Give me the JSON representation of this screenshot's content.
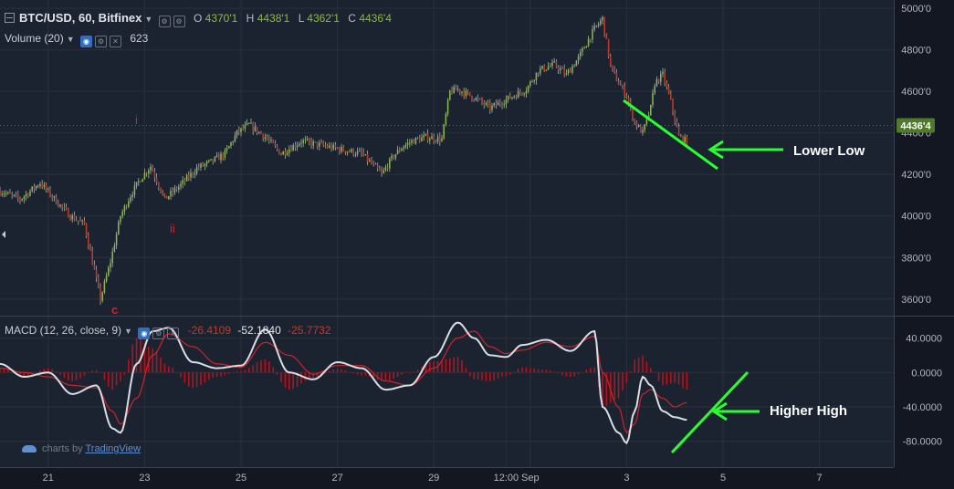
{
  "header": {
    "symbol": "BTC/USD, 60, Bitfinex",
    "ohlc": [
      {
        "label": "O",
        "value": "4370'1"
      },
      {
        "label": "H",
        "value": "4438'1"
      },
      {
        "label": "L",
        "value": "4362'1"
      },
      {
        "label": "C",
        "value": "4436'4"
      }
    ],
    "volume_label": "Volume (20)",
    "volume_value": "623",
    "macd_label": "MACD (12, 26, close, 9)",
    "macd_values": [
      "-26.4109",
      "-52.1840",
      "-25.7732"
    ]
  },
  "branding": {
    "prefix": "charts by",
    "name": "TradingView"
  },
  "colors": {
    "background": "#131722",
    "grid": "#2a2f3a",
    "up": "#8ab94b",
    "down": "#c0392b",
    "wick": "#9fb5a0",
    "macd_line": "#d9dce2",
    "signal_line": "#d0222a",
    "histogram": "#b3131b",
    "annotation": "#29ff2e",
    "wave_label": "#e11f1f",
    "price_tag": "#4f7a2c"
  },
  "icons": [
    "collapse-icon",
    "settings-icon",
    "eye-icon",
    "close-icon",
    "caret-down-icon",
    "tradingview-cloud-icon"
  ],
  "chart_data": [
    {
      "type": "candlestick",
      "ylim": [
        3520,
        5040
      ],
      "yticks": [
        3600,
        3800,
        4000,
        4200,
        4400,
        4600,
        4800,
        5000
      ],
      "ytick_labels": [
        "3600'0",
        "3800'0",
        "4000'0",
        "4200'0",
        "4400'0",
        "4600'0",
        "4800'0",
        "5000'0"
      ],
      "last_price_label": "4436'4",
      "last_price": 4436,
      "xticks": [
        "21",
        "23",
        "25",
        "27",
        "29",
        "12:00",
        "Sep",
        "3",
        "5",
        "7"
      ],
      "xticks_hours": [
        24,
        72,
        120,
        168,
        216,
        252,
        264,
        312,
        360,
        408
      ],
      "x_range_hours": [
        0,
        445
      ],
      "price_path_hours": [
        0,
        10,
        20,
        30,
        35,
        42,
        50,
        55,
        60,
        65,
        70,
        75,
        82,
        90,
        98,
        105,
        112,
        118,
        124,
        132,
        140,
        150,
        160,
        170,
        180,
        190,
        196,
        200,
        205,
        212,
        220,
        224,
        228,
        236,
        244,
        252,
        262,
        268,
        276,
        282,
        288,
        293,
        296,
        300,
        304,
        308,
        312,
        316,
        320,
        324,
        326,
        330,
        334,
        338,
        342
      ],
      "price_path": [
        4120,
        4080,
        4160,
        4050,
        4000,
        3960,
        3600,
        3780,
        4000,
        4100,
        4180,
        4240,
        4080,
        4150,
        4230,
        4260,
        4300,
        4400,
        4440,
        4380,
        4300,
        4360,
        4340,
        4320,
        4300,
        4200,
        4290,
        4330,
        4360,
        4380,
        4370,
        4600,
        4610,
        4570,
        4520,
        4560,
        4610,
        4700,
        4730,
        4680,
        4760,
        4850,
        4900,
        4950,
        4720,
        4640,
        4580,
        4450,
        4400,
        4520,
        4640,
        4680,
        4550,
        4380,
        4360
      ],
      "annotations": [
        {
          "text": "Lower Low",
          "kind": "line-and-arrow"
        },
        {
          "text": "i",
          "kind": "wave-label"
        },
        {
          "text": "ii",
          "kind": "wave-label"
        },
        {
          "text": "c",
          "kind": "wave-label"
        }
      ]
    },
    {
      "type": "line",
      "title": "MACD (12, 26, close, 9)",
      "ylim": [
        -110,
        65
      ],
      "yticks": [
        40,
        0,
        -40,
        -80
      ],
      "ytick_labels": [
        "40.0000",
        "0.0000",
        "-40.0000",
        "-80.0000"
      ],
      "x_hours": [
        0,
        12,
        24,
        36,
        48,
        56,
        60,
        68,
        76,
        84,
        96,
        108,
        120,
        132,
        144,
        156,
        168,
        180,
        192,
        204,
        216,
        228,
        236,
        244,
        252,
        260,
        272,
        284,
        296,
        300,
        308,
        312,
        316,
        320,
        324,
        330,
        336,
        342
      ],
      "series": [
        {
          "name": "MACD",
          "values": [
            10,
            -5,
            0,
            -25,
            -15,
            -65,
            -70,
            10,
            48,
            52,
            12,
            5,
            8,
            50,
            0,
            -8,
            12,
            5,
            -20,
            -15,
            18,
            58,
            40,
            20,
            18,
            32,
            38,
            25,
            48,
            -40,
            -70,
            -82,
            -45,
            -5,
            -15,
            -45,
            -52,
            -55
          ]
        },
        {
          "name": "Signal",
          "values": [
            5,
            0,
            -5,
            -15,
            -18,
            -45,
            -60,
            -30,
            20,
            45,
            30,
            10,
            6,
            35,
            20,
            -2,
            8,
            8,
            -10,
            -15,
            5,
            40,
            48,
            30,
            22,
            26,
            35,
            30,
            42,
            0,
            -40,
            -70,
            -60,
            -25,
            -20,
            -30,
            -40,
            -35
          ]
        },
        {
          "name": "Histogram",
          "values": [
            5,
            -5,
            5,
            -10,
            3,
            -20,
            -10,
            40,
            28,
            7,
            -18,
            -5,
            2,
            15,
            -20,
            -6,
            4,
            -3,
            -10,
            0,
            13,
            18,
            -8,
            -10,
            -4,
            6,
            3,
            -5,
            6,
            -40,
            -30,
            -12,
            15,
            20,
            5,
            -15,
            -12,
            -20
          ]
        }
      ],
      "annotations": [
        {
          "text": "Higher High",
          "kind": "line-and-arrow"
        }
      ]
    }
  ]
}
